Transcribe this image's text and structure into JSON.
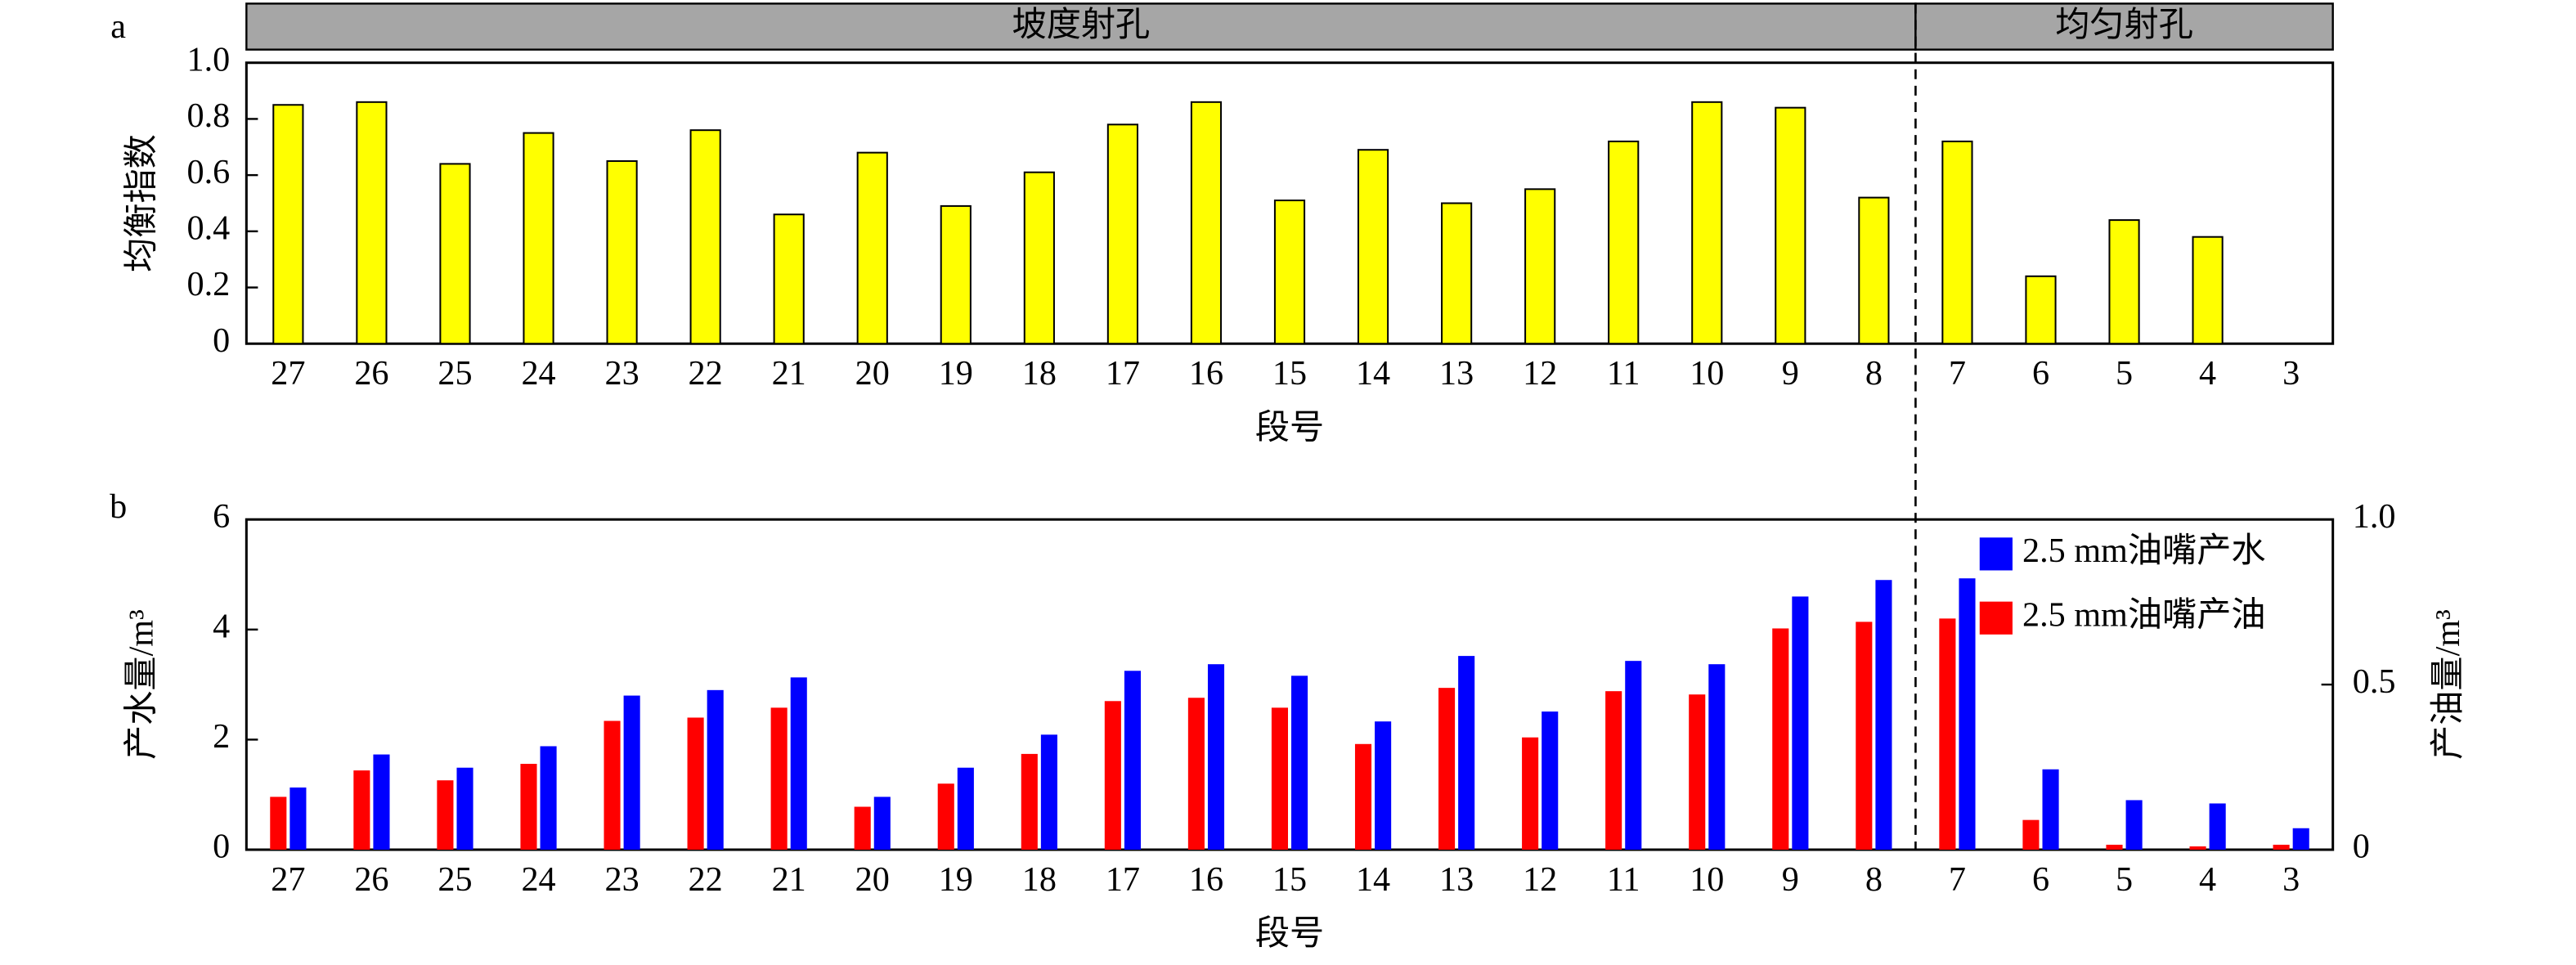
{
  "chart_data": [
    {
      "type": "bar",
      "panel_label": "a",
      "sections": [
        {
          "label": "坡度射孔",
          "from": "27",
          "to": "8"
        },
        {
          "label": "均匀射孔",
          "from": "7",
          "to": "3"
        }
      ],
      "categories": [
        "27",
        "26",
        "25",
        "24",
        "23",
        "22",
        "21",
        "20",
        "19",
        "18",
        "17",
        "16",
        "15",
        "14",
        "13",
        "12",
        "11",
        "10",
        "9",
        "8",
        "7",
        "6",
        "5",
        "4",
        "3"
      ],
      "values": [
        0.85,
        0.86,
        0.64,
        0.75,
        0.65,
        0.76,
        0.46,
        0.68,
        0.49,
        0.61,
        0.78,
        0.86,
        0.51,
        0.69,
        0.5,
        0.55,
        0.72,
        0.86,
        0.84,
        0.52,
        0.72,
        0.24,
        0.44,
        0.38,
        null
      ],
      "color": "#ffff00",
      "xlabel": "段号",
      "ylabel": "均衡指数",
      "ylim": [
        0,
        1
      ],
      "yticks": [
        0,
        0.2,
        0.4,
        0.6,
        0.8,
        {
          "value": 1,
          "label": "1.0"
        }
      ],
      "grid": false
    },
    {
      "type": "bar",
      "panel_label": "b",
      "categories": [
        "27",
        "26",
        "25",
        "24",
        "23",
        "22",
        "21",
        "20",
        "19",
        "18",
        "17",
        "16",
        "15",
        "14",
        "13",
        "12",
        "11",
        "10",
        "9",
        "8",
        "7",
        "6",
        "5",
        "4",
        "3"
      ],
      "series": [
        {
          "name": "2.5 mm油嘴产水",
          "color": "#0000ff",
          "axis": "y",
          "values": [
            1.13,
            1.73,
            1.49,
            1.88,
            2.8,
            2.9,
            3.13,
            0.96,
            1.49,
            2.09,
            3.25,
            3.37,
            3.16,
            2.33,
            3.52,
            2.51,
            3.43,
            3.37,
            4.6,
            4.9,
            4.93,
            1.46,
            0.9,
            0.84,
            0.39
          ]
        },
        {
          "name": "2.5 mm油嘴产油",
          "color": "#ff0000",
          "axis": "y2",
          "values": [
            0.16,
            0.24,
            0.21,
            0.26,
            0.39,
            0.4,
            0.43,
            0.13,
            0.2,
            0.29,
            0.45,
            0.46,
            0.43,
            0.32,
            0.49,
            0.34,
            0.48,
            0.47,
            0.67,
            0.69,
            0.7,
            0.09,
            0.015,
            0.01,
            0.015
          ]
        }
      ],
      "xlabel": "段号",
      "ylabel": "产水量/m³",
      "y2label": "产油量/m³",
      "ylim": [
        0,
        6
      ],
      "yticks": [
        0,
        2,
        4,
        6
      ],
      "y2lim": [
        0,
        1
      ],
      "y2ticks": [
        0,
        0.5,
        {
          "value": 1,
          "label": "1.0"
        }
      ],
      "legend": "upper right",
      "grid": false
    }
  ]
}
